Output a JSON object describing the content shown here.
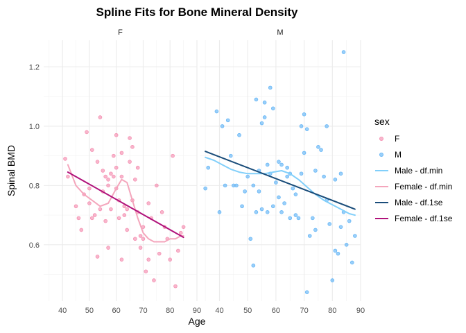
{
  "chart_data": {
    "type": "scatter",
    "title": "Spline Fits for Bone Mineral Density",
    "xlabel": "Age",
    "ylabel": "Spinal BMD",
    "xlim": [
      33,
      90
    ],
    "ylim": [
      0.41,
      1.29
    ],
    "x_ticks": [
      40,
      50,
      60,
      70,
      80,
      90
    ],
    "y_ticks": [
      0.6,
      0.8,
      1.0,
      1.2
    ],
    "y_tick_labels": [
      "0.6",
      "0.8",
      "1.0",
      "1.2"
    ],
    "grid": true,
    "legend_position": "right",
    "legend_title": "sex",
    "legend": [
      {
        "label": "F",
        "kind": "point",
        "color": "#F48FB1"
      },
      {
        "label": "M",
        "kind": "point",
        "color": "#64B5F6"
      },
      {
        "label": "Male - df.min",
        "kind": "line",
        "color": "#81CFFA"
      },
      {
        "label": "Female - df.min",
        "kind": "line",
        "color": "#F4A6BC"
      },
      {
        "label": "Male - df.1se",
        "kind": "line",
        "color": "#1A4D7A"
      },
      {
        "label": "Female - df.1se",
        "kind": "line",
        "color": "#B0127B"
      }
    ],
    "panels": [
      {
        "strip": "F",
        "points": {
          "color": "#F48FB1",
          "x": [
            41,
            42,
            45,
            46,
            47,
            48,
            49,
            50,
            50,
            51,
            51,
            52,
            53,
            53,
            54,
            54,
            55,
            55,
            56,
            56,
            57,
            57,
            57,
            58,
            58,
            59,
            59,
            60,
            60,
            60,
            61,
            61,
            62,
            62,
            62,
            63,
            63,
            64,
            64,
            65,
            65,
            66,
            66,
            67,
            67,
            68,
            68,
            69,
            69,
            70,
            70,
            71,
            72,
            72,
            73,
            74,
            75,
            76,
            77,
            78,
            79,
            80,
            81,
            82,
            83,
            84,
            85
          ],
          "y": [
            0.89,
            0.83,
            0.73,
            0.69,
            0.65,
            0.77,
            0.98,
            0.74,
            0.79,
            0.69,
            0.92,
            0.7,
            0.56,
            0.88,
            0.72,
            1.03,
            0.85,
            0.78,
            0.83,
            0.68,
            0.82,
            0.8,
            0.59,
            0.84,
            0.72,
            0.9,
            0.83,
            0.97,
            0.86,
            0.79,
            0.75,
            0.69,
            0.55,
            0.83,
            0.91,
            0.73,
            0.7,
            0.72,
            0.65,
            0.96,
            0.88,
            0.93,
            0.75,
            0.82,
            0.62,
            0.86,
            0.71,
            0.63,
            0.59,
            0.66,
            0.62,
            0.51,
            0.74,
            0.55,
            0.69,
            0.48,
            0.8,
            0.57,
            0.71,
            0.66,
            0.62,
            0.55,
            0.9,
            0.46,
            0.58,
            0.64,
            0.66
          ]
        },
        "fits": [
          {
            "name": "Female - df.min",
            "color": "#F4A6BC",
            "x": [
              42,
              45,
              48,
              51,
              54,
              57,
              60,
              62,
              64,
              66,
              68,
              70,
              72,
              74,
              76,
              78,
              80,
              82,
              84,
              85
            ],
            "y": [
              0.87,
              0.8,
              0.77,
              0.75,
              0.73,
              0.74,
              0.79,
              0.82,
              0.81,
              0.75,
              0.69,
              0.64,
              0.62,
              0.61,
              0.61,
              0.61,
              0.62,
              0.62,
              0.63,
              0.63
            ]
          },
          {
            "name": "Female - df.1se",
            "color": "#B0127B",
            "x": [
              42,
              85
            ],
            "y": [
              0.845,
              0.625
            ]
          }
        ]
      },
      {
        "strip": "M",
        "points": {
          "color": "#64B5F6",
          "x": [
            35,
            36,
            39,
            40,
            41,
            42,
            43,
            44,
            45,
            46,
            47,
            48,
            49,
            50,
            51,
            52,
            52,
            53,
            53,
            54,
            54,
            55,
            55,
            56,
            56,
            57,
            57,
            58,
            58,
            59,
            59,
            60,
            61,
            61,
            62,
            62,
            63,
            64,
            64,
            65,
            65,
            66,
            67,
            67,
            68,
            69,
            69,
            70,
            70,
            71,
            71,
            72,
            73,
            74,
            74,
            75,
            76,
            77,
            78,
            78,
            79,
            80,
            81,
            81,
            82,
            83,
            83,
            84,
            84,
            85,
            86,
            87,
            88
          ],
          "y": [
            0.79,
            0.86,
            1.05,
            0.71,
            1.0,
            0.8,
            1.02,
            0.9,
            0.8,
            0.8,
            0.97,
            0.73,
            0.78,
            0.83,
            0.62,
            0.53,
            0.8,
            0.71,
            1.09,
            0.85,
            0.78,
            1.01,
            0.72,
            1.08,
            1.03,
            0.87,
            0.71,
            1.13,
            0.84,
            0.73,
            1.06,
            0.81,
            0.76,
            0.88,
            0.71,
            0.87,
            0.74,
            0.83,
            0.86,
            0.69,
            0.84,
            0.79,
            0.77,
            0.7,
            0.69,
            0.84,
            1.0,
            0.91,
            1.04,
            0.99,
            0.44,
            0.63,
            0.69,
            0.85,
            0.65,
            0.93,
            0.92,
            0.83,
            0.75,
            1.0,
            0.67,
            0.48,
            0.58,
            0.82,
            0.57,
            0.84,
            0.66,
            1.25,
            0.71,
            0.6,
            0.68,
            0.54,
            0.63
          ]
        },
        "fits": [
          {
            "name": "Male - df.min",
            "color": "#81CFFA",
            "x": [
              35,
              38,
              41,
              44,
              47,
              50,
              53,
              56,
              59,
              62,
              65,
              68,
              71,
              74,
              77,
              80,
              83,
              86,
              88
            ],
            "y": [
              0.895,
              0.885,
              0.87,
              0.855,
              0.845,
              0.84,
              0.84,
              0.84,
              0.845,
              0.85,
              0.84,
              0.82,
              0.795,
              0.77,
              0.75,
              0.735,
              0.72,
              0.705,
              0.7
            ]
          },
          {
            "name": "Male - df.1se",
            "color": "#1A4D7A",
            "x": [
              35,
              88
            ],
            "y": [
              0.915,
              0.72
            ]
          }
        ]
      }
    ]
  }
}
